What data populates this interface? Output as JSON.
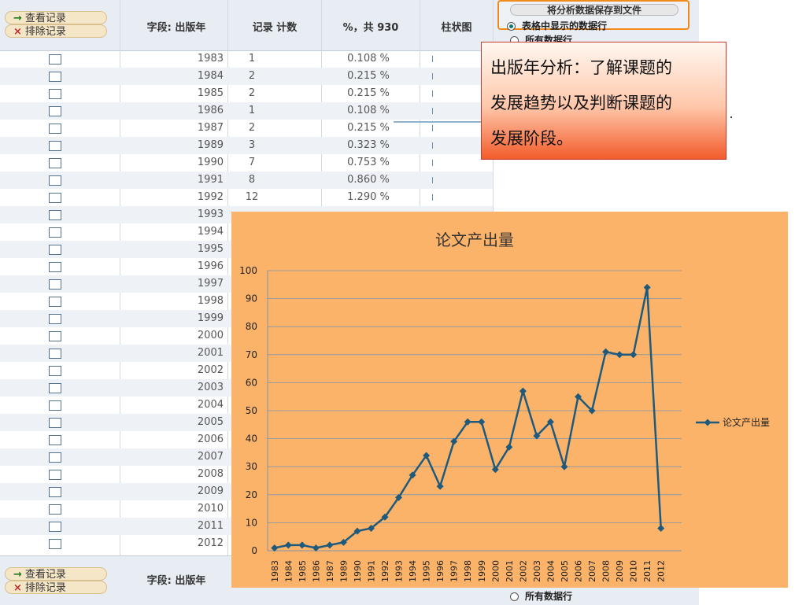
{
  "table": {
    "view_records_label": "查看记录",
    "exclude_records_label": "排除记录",
    "field_header": "字段: 出版年",
    "count_header": "记录 计数",
    "percent_header": "%，共 930",
    "bar_header": "柱状图",
    "save_button_label": "将分析数据保存到文件",
    "radio_displayed_label": "表格中显示的数据行",
    "radio_all_label": "所有数据行",
    "rows": [
      {
        "year": "1983",
        "count": "1",
        "percent": "0.108 %"
      },
      {
        "year": "1984",
        "count": "2",
        "percent": "0.215 %"
      },
      {
        "year": "1985",
        "count": "2",
        "percent": "0.215 %"
      },
      {
        "year": "1986",
        "count": "1",
        "percent": "0.108 %"
      },
      {
        "year": "1987",
        "count": "2",
        "percent": "0.215 %"
      },
      {
        "year": "1989",
        "count": "3",
        "percent": "0.323 %"
      },
      {
        "year": "1990",
        "count": "7",
        "percent": "0.753 %"
      },
      {
        "year": "1991",
        "count": "8",
        "percent": "0.860 %"
      },
      {
        "year": "1992",
        "count": "12",
        "percent": "1.290 %"
      },
      {
        "year": "1993",
        "count": "",
        "percent": ""
      },
      {
        "year": "1994",
        "count": "",
        "percent": ""
      },
      {
        "year": "1995",
        "count": "",
        "percent": ""
      },
      {
        "year": "1996",
        "count": "",
        "percent": ""
      },
      {
        "year": "1997",
        "count": "",
        "percent": ""
      },
      {
        "year": "1998",
        "count": "",
        "percent": ""
      },
      {
        "year": "1999",
        "count": "",
        "percent": ""
      },
      {
        "year": "2000",
        "count": "",
        "percent": ""
      },
      {
        "year": "2001",
        "count": "",
        "percent": ""
      },
      {
        "year": "2002",
        "count": "",
        "percent": ""
      },
      {
        "year": "2003",
        "count": "",
        "percent": ""
      },
      {
        "year": "2004",
        "count": "",
        "percent": ""
      },
      {
        "year": "2005",
        "count": "",
        "percent": ""
      },
      {
        "year": "2006",
        "count": "",
        "percent": ""
      },
      {
        "year": "2007",
        "count": "",
        "percent": ""
      },
      {
        "year": "2008",
        "count": "",
        "percent": ""
      },
      {
        "year": "2009",
        "count": "",
        "percent": ""
      },
      {
        "year": "2010",
        "count": "",
        "percent": ""
      },
      {
        "year": "2011",
        "count": "",
        "percent": ""
      },
      {
        "year": "2012",
        "count": "",
        "percent": ""
      }
    ]
  },
  "callout": {
    "line1": "出版年分析：了解课题的",
    "line2": "发展趋势以及判断课题的",
    "line3": "发展阶段。"
  },
  "colors": {
    "chart_background": "#fbb36a",
    "series_line": "#1f5a7d",
    "callout_border": "#c73b2e",
    "highlight_border": "#f28a1a"
  },
  "chart_data": {
    "type": "line",
    "title": "论文产出量",
    "categories": [
      "1983",
      "1984",
      "1985",
      "1986",
      "1987",
      "1989",
      "1990",
      "1991",
      "1992",
      "1993",
      "1994",
      "1995",
      "1996",
      "1997",
      "1998",
      "1999",
      "2000",
      "2001",
      "2002",
      "2003",
      "2004",
      "2005",
      "2006",
      "2007",
      "2008",
      "2009",
      "2010",
      "2011",
      "2012"
    ],
    "series": [
      {
        "name": "论文产出量",
        "values": [
          1,
          2,
          2,
          1,
          2,
          3,
          7,
          8,
          12,
          19,
          27,
          34,
          23,
          39,
          46,
          46,
          29,
          37,
          57,
          41,
          46,
          30,
          55,
          50,
          71,
          70,
          70,
          94,
          8
        ]
      }
    ],
    "ylim": [
      0,
      100
    ],
    "yticks": [
      0,
      10,
      20,
      30,
      40,
      50,
      60,
      70,
      80,
      90,
      100
    ],
    "grid": true,
    "legend_position": "right",
    "marker": "diamond"
  }
}
